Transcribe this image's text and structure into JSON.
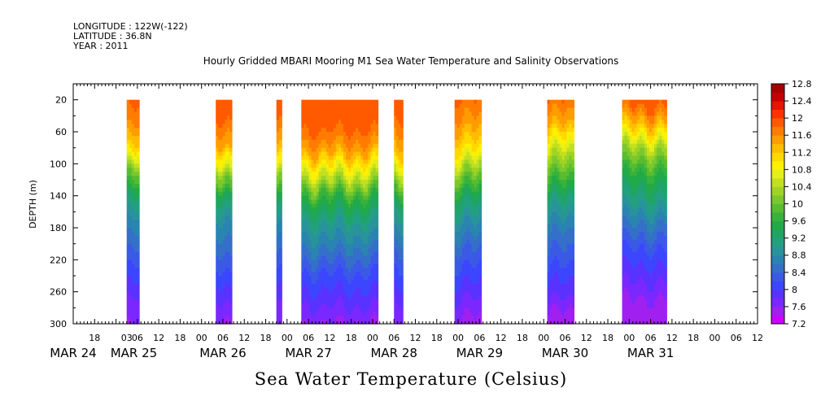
{
  "header": {
    "longitude": "LONGITUDE : 122W(-122)",
    "latitude": "LATITUDE : 36.8N",
    "year": "YEAR : 2011"
  },
  "chart_data": {
    "type": "heatmap",
    "title": "Hourly Gridded MBARI Mooring M1 Sea Water Temperature and Salinity Observations",
    "xlabel": "Sea Water Temperature (Celsius)",
    "ylabel": "DEPTH (m)",
    "x_unit": "hours since 2011-03-24 00:00",
    "xlim": [
      12,
      204
    ],
    "ylim": [
      0,
      300
    ],
    "y_inverted": true,
    "y_ticks": [
      20,
      60,
      100,
      140,
      180,
      220,
      260,
      300
    ],
    "x_hour_ticks": [
      {
        "x": 18,
        "label": "18"
      },
      {
        "x": 27,
        "label": "03"
      },
      {
        "x": 30,
        "label": "06"
      },
      {
        "x": 36,
        "label": "12"
      },
      {
        "x": 42,
        "label": "18"
      },
      {
        "x": 48,
        "label": "00"
      },
      {
        "x": 54,
        "label": "06"
      },
      {
        "x": 60,
        "label": "12"
      },
      {
        "x": 66,
        "label": "18"
      },
      {
        "x": 72,
        "label": "00"
      },
      {
        "x": 78,
        "label": "06"
      },
      {
        "x": 84,
        "label": "12"
      },
      {
        "x": 90,
        "label": "18"
      },
      {
        "x": 96,
        "label": "00"
      },
      {
        "x": 102,
        "label": "06"
      },
      {
        "x": 108,
        "label": "12"
      },
      {
        "x": 114,
        "label": "18"
      },
      {
        "x": 120,
        "label": "00"
      },
      {
        "x": 126,
        "label": "06"
      },
      {
        "x": 132,
        "label": "12"
      },
      {
        "x": 138,
        "label": "18"
      },
      {
        "x": 144,
        "label": "00"
      },
      {
        "x": 150,
        "label": "06"
      },
      {
        "x": 156,
        "label": "12"
      },
      {
        "x": 162,
        "label": "18"
      },
      {
        "x": 168,
        "label": "00"
      },
      {
        "x": 174,
        "label": "06"
      },
      {
        "x": 180,
        "label": "12"
      },
      {
        "x": 186,
        "label": "18"
      },
      {
        "x": 192,
        "label": "00"
      },
      {
        "x": 198,
        "label": "06"
      },
      {
        "x": 204,
        "label": "12"
      }
    ],
    "x_day_labels": [
      {
        "x": 12,
        "label": "MAR 24"
      },
      {
        "x": 29,
        "label": "MAR 25"
      },
      {
        "x": 54,
        "label": "MAR 26"
      },
      {
        "x": 78,
        "label": "MAR 27"
      },
      {
        "x": 102,
        "label": "MAR 28"
      },
      {
        "x": 126,
        "label": "MAR 29"
      },
      {
        "x": 150,
        "label": "MAR 30"
      },
      {
        "x": 174,
        "label": "MAR 31"
      }
    ],
    "colorbar": {
      "min": 7.2,
      "max": 12.8,
      "step": 0.2,
      "tick_labels": [
        "12.8",
        "12.4",
        "12",
        "11.6",
        "11.2",
        "10.8",
        "10.4",
        "10",
        "9.6",
        "9.2",
        "8.8",
        "8.4",
        "8",
        "7.6",
        "7.2"
      ]
    },
    "colors": [
      "#cc00ff",
      "#a020f0",
      "#7a28ff",
      "#5a32ff",
      "#3c46ff",
      "#3a5ae6",
      "#3470c8",
      "#2a84b0",
      "#28949a",
      "#22a080",
      "#20a464",
      "#22aa48",
      "#38b23a",
      "#58bc30",
      "#7ac82c",
      "#9ed424",
      "#c2e020",
      "#e4ee18",
      "#fff000",
      "#ffd800",
      "#ffbc00",
      "#ff9c00",
      "#ff7c00",
      "#ff5a00",
      "#ff3200",
      "#e61400",
      "#c40000",
      "#a80000"
    ],
    "gaps_value": "no data",
    "segments": [
      {
        "x0": 27.0,
        "x1": 30.5,
        "profile": [
          11.9,
          11.6,
          11.1,
          10.0,
          9.2,
          8.7,
          8.4,
          8.1,
          7.8,
          7.6
        ]
      },
      {
        "x0": 52.0,
        "x1": 56.5,
        "profile": [
          12.0,
          11.8,
          11.4,
          10.4,
          9.4,
          8.8,
          8.5,
          8.2,
          7.9,
          7.6
        ]
      },
      {
        "x0": 69.0,
        "x1": 70.5,
        "profile": [
          12.0,
          11.7,
          11.2,
          10.2,
          9.3,
          8.7,
          8.4,
          8.1,
          7.8,
          7.6
        ]
      },
      {
        "x0": 76.0,
        "x1": 97.5,
        "profile": [
          12.0,
          11.9,
          11.5,
          10.6,
          9.6,
          9.0,
          8.6,
          8.2,
          7.9,
          7.6
        ]
      },
      {
        "x0": 102.0,
        "x1": 104.5,
        "profile": [
          12.0,
          11.7,
          11.3,
          10.3,
          9.3,
          8.8,
          8.4,
          8.1,
          7.8,
          7.6
        ]
      },
      {
        "x0": 119.0,
        "x1": 126.5,
        "profile": [
          11.8,
          11.5,
          11.0,
          10.1,
          9.3,
          8.8,
          8.4,
          8.1,
          7.8,
          7.5
        ]
      },
      {
        "x0": 145.0,
        "x1": 152.5,
        "profile": [
          11.8,
          11.4,
          10.6,
          9.9,
          9.2,
          8.7,
          8.4,
          8.1,
          7.8,
          7.4
        ]
      },
      {
        "x0": 166.0,
        "x1": 178.5,
        "profile": [
          12.0,
          11.3,
          10.3,
          9.6,
          9.1,
          8.6,
          8.2,
          7.9,
          7.6,
          7.4
        ]
      }
    ]
  }
}
